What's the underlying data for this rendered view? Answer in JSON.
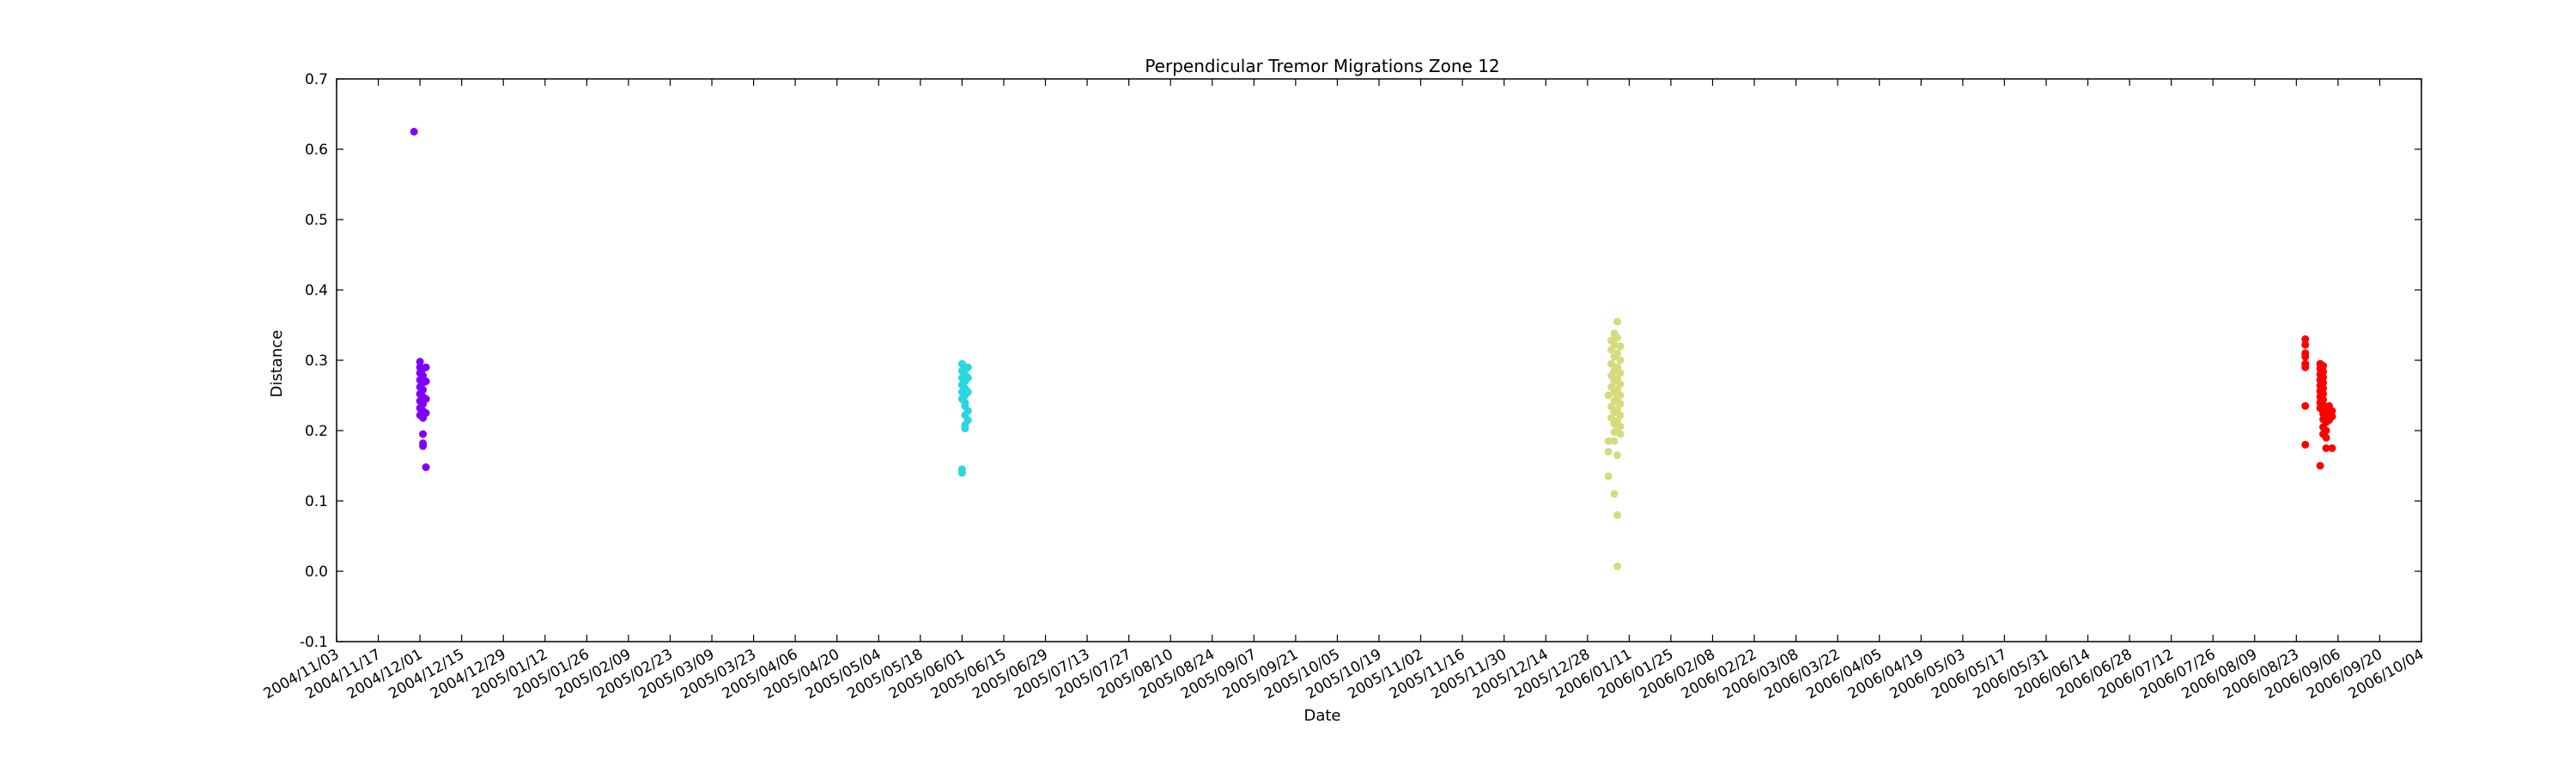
{
  "chart_data": {
    "type": "scatter",
    "title": "Perpendicular Tremor Migrations Zone 12",
    "xlabel": "Date",
    "ylabel": "Distance",
    "xlim": [
      "2004-11-03",
      "2006-10-04"
    ],
    "ylim": [
      -0.1,
      0.7
    ],
    "grid": false,
    "legend": "none",
    "x_tick_labels": [
      "2004/11/03",
      "2004/11/17",
      "2004/12/01",
      "2004/12/15",
      "2004/12/29",
      "2005/01/12",
      "2005/01/26",
      "2005/02/09",
      "2005/02/23",
      "2005/03/09",
      "2005/03/23",
      "2005/04/06",
      "2005/04/20",
      "2005/05/04",
      "2005/05/18",
      "2005/06/01",
      "2005/06/15",
      "2005/06/29",
      "2005/07/13",
      "2005/07/27",
      "2005/08/10",
      "2005/08/24",
      "2005/09/07",
      "2005/09/21",
      "2005/10/05",
      "2005/10/19",
      "2005/11/02",
      "2005/11/16",
      "2005/11/30",
      "2005/12/14",
      "2005/12/28",
      "2006/01/11",
      "2006/01/25",
      "2006/02/08",
      "2006/02/22",
      "2006/03/08",
      "2006/03/22",
      "2006/04/05",
      "2006/04/19",
      "2006/05/03",
      "2006/05/17",
      "2006/05/31",
      "2006/06/14",
      "2006/06/28",
      "2006/07/12",
      "2006/07/26",
      "2006/08/09",
      "2006/08/23",
      "2006/09/06",
      "2006/09/20",
      "2006/10/04"
    ],
    "y_tick_labels": [
      "-0.1",
      "0.0",
      "0.1",
      "0.2",
      "0.3",
      "0.4",
      "0.5",
      "0.6",
      "0.7"
    ],
    "series": [
      {
        "color": "#8000ff",
        "points": [
          {
            "x": "2004-11-29",
            "y": 0.625
          },
          {
            "x": "2004-12-01",
            "y": 0.298
          },
          {
            "x": "2004-12-01",
            "y": 0.29
          },
          {
            "x": "2004-12-02",
            "y": 0.288
          },
          {
            "x": "2004-12-01",
            "y": 0.282
          },
          {
            "x": "2004-12-02",
            "y": 0.278
          },
          {
            "x": "2004-12-01",
            "y": 0.272
          },
          {
            "x": "2004-12-02",
            "y": 0.268
          },
          {
            "x": "2004-12-01",
            "y": 0.262
          },
          {
            "x": "2004-12-02",
            "y": 0.258
          },
          {
            "x": "2004-12-01",
            "y": 0.252
          },
          {
            "x": "2004-12-02",
            "y": 0.248
          },
          {
            "x": "2004-12-01",
            "y": 0.242
          },
          {
            "x": "2004-12-02",
            "y": 0.238
          },
          {
            "x": "2004-12-01",
            "y": 0.232
          },
          {
            "x": "2004-12-02",
            "y": 0.228
          },
          {
            "x": "2004-12-01",
            "y": 0.222
          },
          {
            "x": "2004-12-02",
            "y": 0.218
          },
          {
            "x": "2004-12-03",
            "y": 0.225
          },
          {
            "x": "2004-12-03",
            "y": 0.245
          },
          {
            "x": "2004-12-03",
            "y": 0.27
          },
          {
            "x": "2004-12-03",
            "y": 0.29
          },
          {
            "x": "2004-12-02",
            "y": 0.195
          },
          {
            "x": "2004-12-02",
            "y": 0.182
          },
          {
            "x": "2004-12-02",
            "y": 0.178
          },
          {
            "x": "2004-12-03",
            "y": 0.148
          }
        ]
      },
      {
        "color": "#2ad6e0",
        "points": [
          {
            "x": "2005-06-01",
            "y": 0.295
          },
          {
            "x": "2005-06-02",
            "y": 0.29
          },
          {
            "x": "2005-06-01",
            "y": 0.285
          },
          {
            "x": "2005-06-02",
            "y": 0.28
          },
          {
            "x": "2005-06-01",
            "y": 0.275
          },
          {
            "x": "2005-06-02",
            "y": 0.27
          },
          {
            "x": "2005-06-01",
            "y": 0.265
          },
          {
            "x": "2005-06-02",
            "y": 0.26
          },
          {
            "x": "2005-06-01",
            "y": 0.255
          },
          {
            "x": "2005-06-02",
            "y": 0.25
          },
          {
            "x": "2005-06-01",
            "y": 0.245
          },
          {
            "x": "2005-06-03",
            "y": 0.255
          },
          {
            "x": "2005-06-02",
            "y": 0.24
          },
          {
            "x": "2005-06-02",
            "y": 0.235
          },
          {
            "x": "2005-06-03",
            "y": 0.228
          },
          {
            "x": "2005-06-02",
            "y": 0.222
          },
          {
            "x": "2005-06-03",
            "y": 0.215
          },
          {
            "x": "2005-06-02",
            "y": 0.208
          },
          {
            "x": "2005-06-02",
            "y": 0.203
          },
          {
            "x": "2005-06-01",
            "y": 0.145
          },
          {
            "x": "2005-06-01",
            "y": 0.14
          },
          {
            "x": "2005-06-03",
            "y": 0.29
          },
          {
            "x": "2005-06-03",
            "y": 0.275
          }
        ]
      },
      {
        "color": "#d4dc7f",
        "points": [
          {
            "x": "2006-01-07",
            "y": 0.355
          },
          {
            "x": "2006-01-06",
            "y": 0.338
          },
          {
            "x": "2006-01-07",
            "y": 0.332
          },
          {
            "x": "2006-01-05",
            "y": 0.328
          },
          {
            "x": "2006-01-06",
            "y": 0.322
          },
          {
            "x": "2006-01-08",
            "y": 0.32
          },
          {
            "x": "2006-01-05",
            "y": 0.315
          },
          {
            "x": "2006-01-07",
            "y": 0.31
          },
          {
            "x": "2006-01-06",
            "y": 0.305
          },
          {
            "x": "2006-01-08",
            "y": 0.3
          },
          {
            "x": "2006-01-05",
            "y": 0.295
          },
          {
            "x": "2006-01-07",
            "y": 0.29
          },
          {
            "x": "2006-01-06",
            "y": 0.285
          },
          {
            "x": "2006-01-08",
            "y": 0.282
          },
          {
            "x": "2006-01-05",
            "y": 0.278
          },
          {
            "x": "2006-01-07",
            "y": 0.274
          },
          {
            "x": "2006-01-06",
            "y": 0.27
          },
          {
            "x": "2006-01-08",
            "y": 0.266
          },
          {
            "x": "2006-01-05",
            "y": 0.262
          },
          {
            "x": "2006-01-07",
            "y": 0.258
          },
          {
            "x": "2006-01-06",
            "y": 0.254
          },
          {
            "x": "2006-01-08",
            "y": 0.25
          },
          {
            "x": "2006-01-04",
            "y": 0.25
          },
          {
            "x": "2006-01-07",
            "y": 0.246
          },
          {
            "x": "2006-01-06",
            "y": 0.242
          },
          {
            "x": "2006-01-08",
            "y": 0.238
          },
          {
            "x": "2006-01-05",
            "y": 0.234
          },
          {
            "x": "2006-01-07",
            "y": 0.23
          },
          {
            "x": "2006-01-06",
            "y": 0.226
          },
          {
            "x": "2006-01-08",
            "y": 0.222
          },
          {
            "x": "2006-01-05",
            "y": 0.218
          },
          {
            "x": "2006-01-07",
            "y": 0.214
          },
          {
            "x": "2006-01-06",
            "y": 0.21
          },
          {
            "x": "2006-01-08",
            "y": 0.206
          },
          {
            "x": "2006-01-07",
            "y": 0.202
          },
          {
            "x": "2006-01-06",
            "y": 0.198
          },
          {
            "x": "2006-01-08",
            "y": 0.195
          },
          {
            "x": "2006-01-04",
            "y": 0.185
          },
          {
            "x": "2006-01-06",
            "y": 0.185
          },
          {
            "x": "2006-01-04",
            "y": 0.17
          },
          {
            "x": "2006-01-07",
            "y": 0.165
          },
          {
            "x": "2006-01-04",
            "y": 0.135
          },
          {
            "x": "2006-01-06",
            "y": 0.11
          },
          {
            "x": "2006-01-07",
            "y": 0.08
          },
          {
            "x": "2006-01-07",
            "y": 0.007
          }
        ]
      },
      {
        "color": "#ff0000",
        "points": [
          {
            "x": "2006-08-26",
            "y": 0.33
          },
          {
            "x": "2006-08-26",
            "y": 0.322
          },
          {
            "x": "2006-08-26",
            "y": 0.31
          },
          {
            "x": "2006-08-26",
            "y": 0.305
          },
          {
            "x": "2006-08-26",
            "y": 0.295
          },
          {
            "x": "2006-08-26",
            "y": 0.29
          },
          {
            "x": "2006-08-26",
            "y": 0.235
          },
          {
            "x": "2006-08-26",
            "y": 0.18
          },
          {
            "x": "2006-08-31",
            "y": 0.295
          },
          {
            "x": "2006-09-01",
            "y": 0.292
          },
          {
            "x": "2006-08-31",
            "y": 0.288
          },
          {
            "x": "2006-09-01",
            "y": 0.284
          },
          {
            "x": "2006-08-31",
            "y": 0.28
          },
          {
            "x": "2006-09-01",
            "y": 0.276
          },
          {
            "x": "2006-08-31",
            "y": 0.272
          },
          {
            "x": "2006-09-01",
            "y": 0.268
          },
          {
            "x": "2006-08-31",
            "y": 0.264
          },
          {
            "x": "2006-09-01",
            "y": 0.26
          },
          {
            "x": "2006-08-31",
            "y": 0.256
          },
          {
            "x": "2006-09-01",
            "y": 0.252
          },
          {
            "x": "2006-08-31",
            "y": 0.248
          },
          {
            "x": "2006-09-01",
            "y": 0.244
          },
          {
            "x": "2006-08-31",
            "y": 0.24
          },
          {
            "x": "2006-09-01",
            "y": 0.236
          },
          {
            "x": "2006-08-31",
            "y": 0.232
          },
          {
            "x": "2006-09-02",
            "y": 0.228
          },
          {
            "x": "2006-09-01",
            "y": 0.224
          },
          {
            "x": "2006-09-02",
            "y": 0.22
          },
          {
            "x": "2006-09-01",
            "y": 0.216
          },
          {
            "x": "2006-09-02",
            "y": 0.212
          },
          {
            "x": "2006-09-01",
            "y": 0.205
          },
          {
            "x": "2006-09-02",
            "y": 0.2
          },
          {
            "x": "2006-09-01",
            "y": 0.195
          },
          {
            "x": "2006-09-02",
            "y": 0.19
          },
          {
            "x": "2006-09-03",
            "y": 0.235
          },
          {
            "x": "2006-09-03",
            "y": 0.225
          },
          {
            "x": "2006-09-04",
            "y": 0.228
          },
          {
            "x": "2006-09-04",
            "y": 0.22
          },
          {
            "x": "2006-09-03",
            "y": 0.215
          },
          {
            "x": "2006-09-02",
            "y": 0.175
          },
          {
            "x": "2006-09-04",
            "y": 0.175
          },
          {
            "x": "2006-08-31",
            "y": 0.15
          }
        ]
      }
    ]
  }
}
